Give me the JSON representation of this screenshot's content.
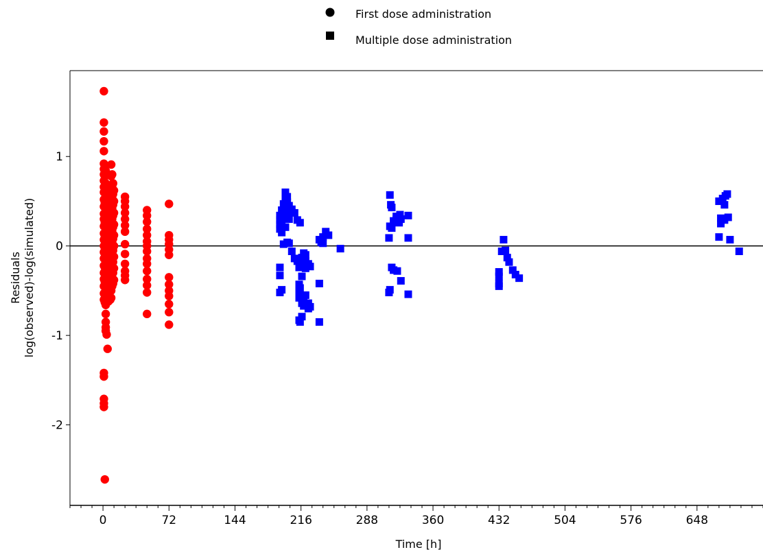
{
  "chart_data": {
    "type": "scatter",
    "title": "",
    "xlabel": "Time [h]",
    "ylabel": [
      "Residuals",
      "log(observed)-log(simulated)"
    ],
    "xlim": [
      -36,
      720
    ],
    "ylim": [
      -2.9,
      1.96
    ],
    "x_ticks": [
      0,
      72,
      144,
      216,
      288,
      360,
      432,
      504,
      576,
      648
    ],
    "x_minor_step": 12,
    "y_ticks": [
      -2,
      -1,
      0,
      1
    ],
    "reference_line_y": 0,
    "grid": false,
    "legend": {
      "position": "top-center",
      "entries": [
        {
          "label": "First dose administration",
          "marker": "circle",
          "color": "#000000"
        },
        {
          "label": "Multiple dose administration",
          "marker": "square",
          "color": "#000000"
        }
      ]
    },
    "series": [
      {
        "label": "First dose administration",
        "marker": "circle",
        "color": "#ff0000",
        "points": [
          [
            1,
            1.73
          ],
          [
            1,
            1.38
          ],
          [
            1,
            1.28
          ],
          [
            1,
            1.17
          ],
          [
            1,
            1.06
          ],
          [
            1,
            0.92
          ],
          [
            1,
            0.86
          ],
          [
            1,
            0.8
          ],
          [
            1,
            0.73
          ],
          [
            1,
            0.66
          ],
          [
            1,
            0.6
          ],
          [
            1,
            0.52
          ],
          [
            1,
            0.44
          ],
          [
            1,
            0.36
          ],
          [
            1,
            0.3
          ],
          [
            1,
            0.22
          ],
          [
            1,
            0.14
          ],
          [
            1,
            0.07
          ],
          [
            1,
            0.0
          ],
          [
            1,
            -0.07
          ],
          [
            1,
            -0.14
          ],
          [
            1,
            -0.22
          ],
          [
            1,
            -0.3
          ],
          [
            1,
            -0.37
          ],
          [
            1,
            -0.45
          ],
          [
            1,
            -0.53
          ],
          [
            1,
            -0.6
          ],
          [
            1,
            -1.42
          ],
          [
            1,
            -1.46
          ],
          [
            1,
            -1.71
          ],
          [
            1,
            -1.76
          ],
          [
            1,
            -1.8
          ],
          [
            2,
            -2.61
          ],
          [
            2,
            0.9
          ],
          [
            2,
            0.78
          ],
          [
            2,
            0.65
          ],
          [
            2,
            0.48
          ],
          [
            2,
            0.26
          ],
          [
            2,
            0.1
          ],
          [
            2,
            -0.05
          ],
          [
            2,
            -0.24
          ],
          [
            2,
            -0.4
          ],
          [
            2,
            -0.52
          ],
          [
            2,
            -0.63
          ],
          [
            3,
            0.84
          ],
          [
            3,
            0.7
          ],
          [
            3,
            0.57
          ],
          [
            3,
            0.45
          ],
          [
            3,
            0.33
          ],
          [
            3,
            0.19
          ],
          [
            3,
            0.04
          ],
          [
            3,
            -0.12
          ],
          [
            3,
            -0.28
          ],
          [
            3,
            -0.42
          ],
          [
            3,
            -0.56
          ],
          [
            3,
            -0.66
          ],
          [
            3,
            -0.76
          ],
          [
            3,
            -0.85
          ],
          [
            3,
            -0.91
          ],
          [
            3,
            -0.95
          ],
          [
            4,
            -0.99
          ],
          [
            5,
            0.62
          ],
          [
            5,
            0.49
          ],
          [
            5,
            0.36
          ],
          [
            5,
            0.24
          ],
          [
            5,
            0.12
          ],
          [
            5,
            -0.02
          ],
          [
            5,
            -0.16
          ],
          [
            5,
            -0.3
          ],
          [
            5,
            -0.45
          ],
          [
            5,
            -0.6
          ],
          [
            5,
            -1.15
          ],
          [
            6,
            0.56
          ],
          [
            6,
            0.44
          ],
          [
            6,
            0.3
          ],
          [
            6,
            0.15
          ],
          [
            6,
            0.02
          ],
          [
            6,
            -0.14
          ],
          [
            6,
            -0.3
          ],
          [
            6,
            -0.46
          ],
          [
            6,
            -0.62
          ],
          [
            7,
            0.66
          ],
          [
            7,
            0.53
          ],
          [
            7,
            0.4
          ],
          [
            7,
            0.28
          ],
          [
            7,
            0.18
          ],
          [
            7,
            0.08
          ],
          [
            7,
            -0.04
          ],
          [
            7,
            -0.18
          ],
          [
            7,
            -0.34
          ],
          [
            7,
            -0.5
          ],
          [
            8,
            0.62
          ],
          [
            8,
            0.5
          ],
          [
            8,
            0.38
          ],
          [
            8,
            0.22
          ],
          [
            8,
            0.06
          ],
          [
            8,
            -0.08
          ],
          [
            8,
            -0.22
          ],
          [
            8,
            -0.35
          ],
          [
            8,
            -0.47
          ],
          [
            8,
            -0.6
          ],
          [
            9,
            0.91
          ],
          [
            9,
            0.78
          ],
          [
            9,
            0.64
          ],
          [
            9,
            0.51
          ],
          [
            9,
            0.37
          ],
          [
            9,
            0.24
          ],
          [
            9,
            0.1
          ],
          [
            9,
            -0.03
          ],
          [
            9,
            -0.15
          ],
          [
            9,
            -0.26
          ],
          [
            9,
            -0.38
          ],
          [
            9,
            -0.5
          ],
          [
            9,
            -0.58
          ],
          [
            10,
            0.8
          ],
          [
            10,
            0.67
          ],
          [
            10,
            0.55
          ],
          [
            10,
            0.42
          ],
          [
            10,
            0.3
          ],
          [
            10,
            0.17
          ],
          [
            10,
            0.04
          ],
          [
            10,
            -0.1
          ],
          [
            10,
            -0.22
          ],
          [
            10,
            -0.35
          ],
          [
            10,
            -0.45
          ],
          [
            11,
            0.7
          ],
          [
            11,
            0.58
          ],
          [
            11,
            0.46
          ],
          [
            11,
            0.34
          ],
          [
            11,
            0.21
          ],
          [
            11,
            0.08
          ],
          [
            11,
            -0.05
          ],
          [
            11,
            -0.18
          ],
          [
            11,
            -0.3
          ],
          [
            11,
            -0.42
          ],
          [
            12,
            0.62
          ],
          [
            12,
            0.5
          ],
          [
            12,
            0.37
          ],
          [
            12,
            0.24
          ],
          [
            12,
            0.12
          ],
          [
            12,
            0.0
          ],
          [
            12,
            -0.12
          ],
          [
            12,
            -0.25
          ],
          [
            12,
            -0.38
          ],
          [
            24,
            0.55
          ],
          [
            24,
            0.5
          ],
          [
            24,
            0.44
          ],
          [
            24,
            0.37
          ],
          [
            24,
            0.3
          ],
          [
            24,
            0.23
          ],
          [
            24,
            0.16
          ],
          [
            24,
            0.02
          ],
          [
            24,
            -0.09
          ],
          [
            24,
            -0.2
          ],
          [
            24,
            -0.28
          ],
          [
            24,
            -0.33
          ],
          [
            24,
            -0.38
          ],
          [
            48,
            0.4
          ],
          [
            48,
            0.34
          ],
          [
            48,
            0.27
          ],
          [
            48,
            0.19
          ],
          [
            48,
            0.12
          ],
          [
            48,
            0.05
          ],
          [
            48,
            0.0
          ],
          [
            48,
            -0.06
          ],
          [
            48,
            -0.14
          ],
          [
            48,
            -0.2
          ],
          [
            48,
            -0.28
          ],
          [
            48,
            -0.37
          ],
          [
            48,
            -0.44
          ],
          [
            48,
            -0.52
          ],
          [
            48,
            -0.76
          ],
          [
            72,
            0.47
          ],
          [
            72,
            0.12
          ],
          [
            72,
            0.07
          ],
          [
            72,
            0.02
          ],
          [
            72,
            -0.04
          ],
          [
            72,
            -0.1
          ],
          [
            72,
            -0.35
          ],
          [
            72,
            -0.43
          ],
          [
            72,
            -0.5
          ],
          [
            72,
            -0.56
          ],
          [
            72,
            -0.65
          ],
          [
            72,
            -0.74
          ],
          [
            72,
            -0.88
          ]
        ]
      },
      {
        "label": "Multiple dose administration",
        "marker": "square",
        "color": "#0000ff",
        "points": [
          [
            193,
            0.29
          ],
          [
            193,
            0.24
          ],
          [
            193,
            0.19
          ],
          [
            193,
            0.34
          ],
          [
            193,
            -0.24
          ],
          [
            193,
            -0.33
          ],
          [
            193,
            -0.52
          ],
          [
            195,
            0.4
          ],
          [
            195,
            0.28
          ],
          [
            195,
            0.15
          ],
          [
            195,
            -0.49
          ],
          [
            197,
            0.47
          ],
          [
            197,
            0.37
          ],
          [
            197,
            0.02
          ],
          [
            199,
            0.6
          ],
          [
            199,
            0.52
          ],
          [
            199,
            0.42
          ],
          [
            199,
            0.33
          ],
          [
            199,
            0.21
          ],
          [
            201,
            0.55
          ],
          [
            201,
            0.49
          ],
          [
            201,
            0.38
          ],
          [
            201,
            0.04
          ],
          [
            203,
            0.45
          ],
          [
            203,
            0.3
          ],
          [
            203,
            0.03
          ],
          [
            206,
            0.41
          ],
          [
            206,
            -0.06
          ],
          [
            209,
            0.37
          ],
          [
            209,
            -0.14
          ],
          [
            212,
            0.29
          ],
          [
            212,
            -0.17
          ],
          [
            214,
            -0.24
          ],
          [
            214,
            -0.43
          ],
          [
            214,
            -0.5
          ],
          [
            214,
            -0.58
          ],
          [
            214,
            -0.83
          ],
          [
            215,
            0.26
          ],
          [
            215,
            -0.47
          ],
          [
            215,
            -0.85
          ],
          [
            217,
            -0.13
          ],
          [
            217,
            -0.22
          ],
          [
            217,
            -0.34
          ],
          [
            217,
            -0.56
          ],
          [
            217,
            -0.64
          ],
          [
            217,
            -0.79
          ],
          [
            219,
            -0.08
          ],
          [
            219,
            -0.2
          ],
          [
            219,
            -0.61
          ],
          [
            219,
            -0.67
          ],
          [
            221,
            -0.1
          ],
          [
            221,
            -0.17
          ],
          [
            221,
            -0.25
          ],
          [
            221,
            -0.55
          ],
          [
            224,
            -0.2
          ],
          [
            224,
            -0.64
          ],
          [
            224,
            -0.7
          ],
          [
            226,
            -0.23
          ],
          [
            226,
            -0.68
          ],
          [
            236,
            0.07
          ],
          [
            236,
            -0.42
          ],
          [
            236,
            -0.85
          ],
          [
            238,
            0.04
          ],
          [
            240,
            0.1
          ],
          [
            240,
            0.03
          ],
          [
            243,
            0.16
          ],
          [
            246,
            0.12
          ],
          [
            259,
            -0.03
          ],
          [
            312,
            0.09
          ],
          [
            312,
            -0.52
          ],
          [
            313,
            0.57
          ],
          [
            313,
            0.22
          ],
          [
            313,
            -0.49
          ],
          [
            314,
            0.46
          ],
          [
            315,
            0.43
          ],
          [
            315,
            0.2
          ],
          [
            315,
            -0.24
          ],
          [
            317,
            0.28
          ],
          [
            317,
            -0.27
          ],
          [
            320,
            0.33
          ],
          [
            320,
            0.3
          ],
          [
            321,
            -0.28
          ],
          [
            323,
            0.26
          ],
          [
            324,
            0.35
          ],
          [
            325,
            0.3
          ],
          [
            325,
            -0.39
          ],
          [
            333,
            0.34
          ],
          [
            333,
            0.09
          ],
          [
            333,
            -0.54
          ],
          [
            432,
            -0.34
          ],
          [
            432,
            -0.29
          ],
          [
            432,
            -0.42
          ],
          [
            432,
            -0.45
          ],
          [
            435,
            -0.06
          ],
          [
            437,
            0.07
          ],
          [
            439,
            -0.05
          ],
          [
            441,
            -0.13
          ],
          [
            443,
            -0.18
          ],
          [
            447,
            -0.27
          ],
          [
            450,
            -0.32
          ],
          [
            454,
            -0.36
          ],
          [
            672,
            0.5
          ],
          [
            672,
            0.1
          ],
          [
            674,
            0.31
          ],
          [
            674,
            0.25
          ],
          [
            676,
            0.53
          ],
          [
            678,
            0.46
          ],
          [
            678,
            0.29
          ],
          [
            679,
            0.56
          ],
          [
            681,
            0.58
          ],
          [
            682,
            0.32
          ],
          [
            684,
            0.07
          ],
          [
            694,
            -0.06
          ]
        ]
      }
    ]
  }
}
